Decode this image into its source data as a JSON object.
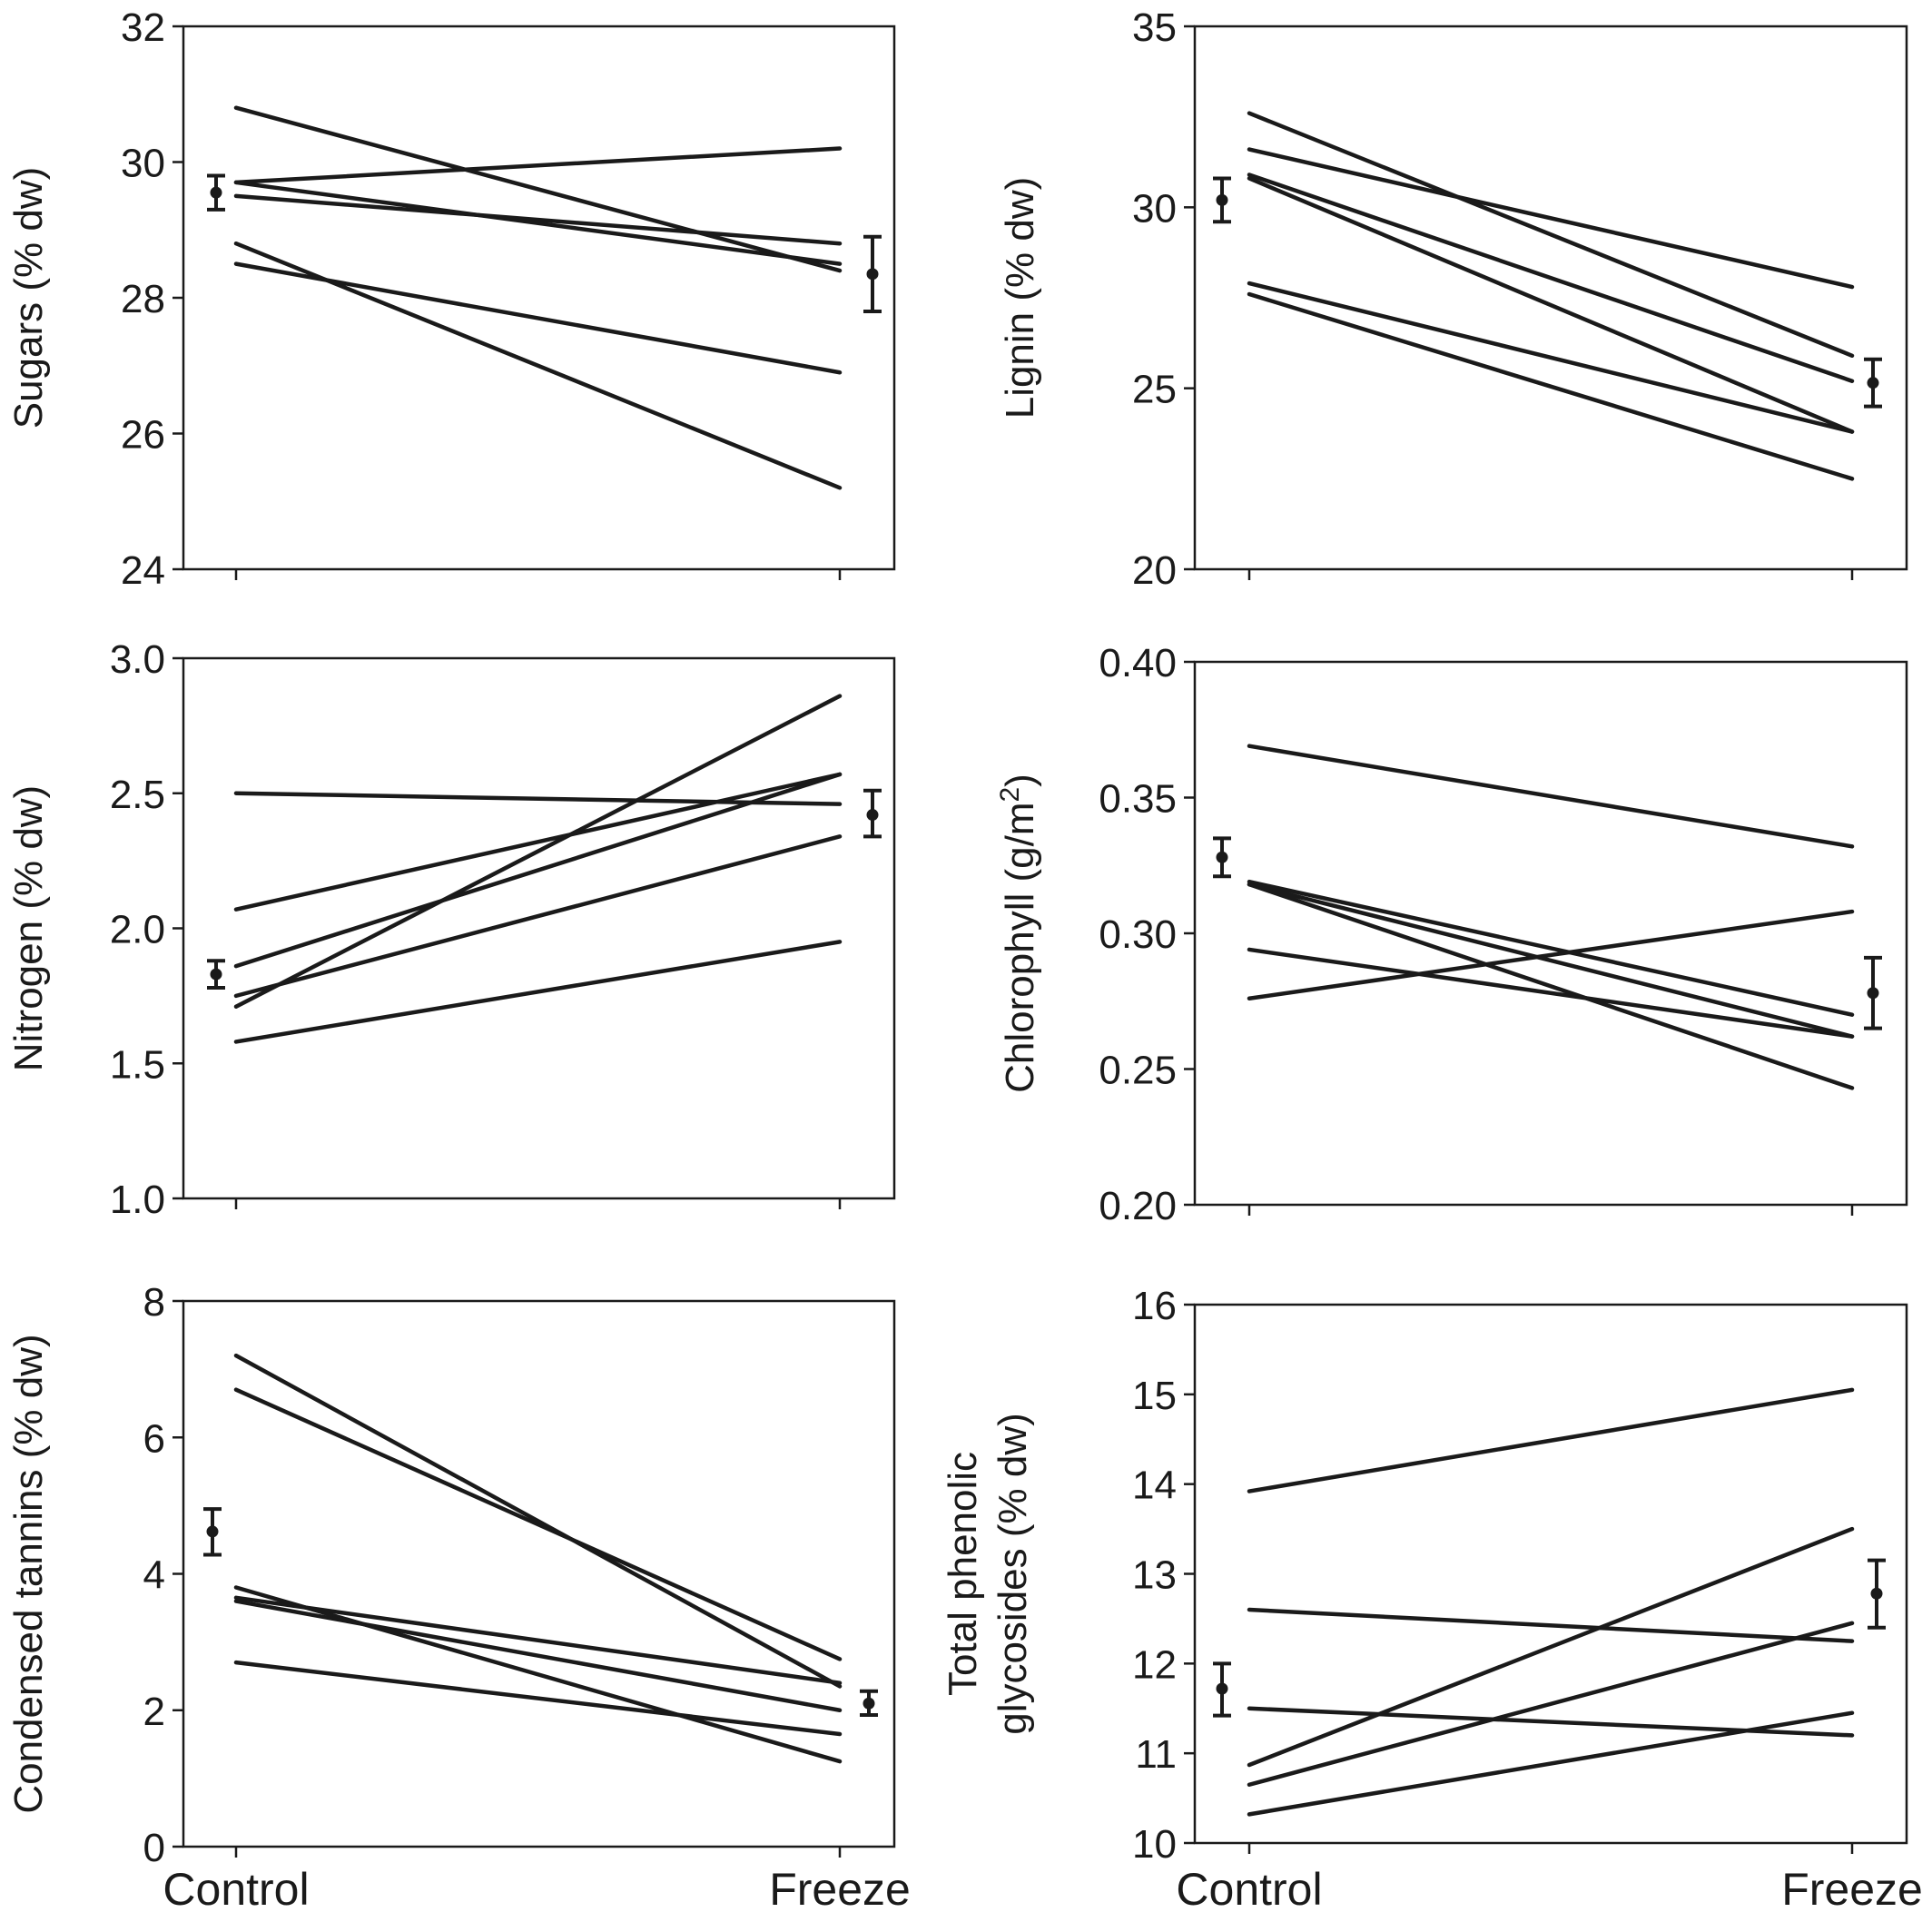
{
  "x_categories": [
    "Control",
    "Freeze"
  ],
  "chart_data": [
    {
      "type": "line",
      "ylabel": "Sugars (% dw)",
      "ylim": [
        24,
        32
      ],
      "yticks": [
        "24",
        "26",
        "28",
        "30",
        "32"
      ],
      "categories": [
        "Control",
        "Freeze"
      ],
      "series": [
        {
          "values": [
            30.8,
            28.4
          ]
        },
        {
          "values": [
            29.7,
            30.2
          ]
        },
        {
          "values": [
            29.7,
            28.5
          ]
        },
        {
          "values": [
            29.5,
            28.8
          ]
        },
        {
          "values": [
            28.8,
            25.2
          ]
        },
        {
          "values": [
            28.5,
            26.9
          ]
        }
      ],
      "means": [
        {
          "mean": 29.55,
          "low": 29.3,
          "high": 29.8
        },
        {
          "mean": 28.35,
          "low": 27.8,
          "high": 28.9
        }
      ]
    },
    {
      "type": "line",
      "ylabel": "Lignin (% dw)",
      "ylim": [
        20,
        35
      ],
      "yticks": [
        "20",
        "25",
        "30",
        "35"
      ],
      "categories": [
        "Control",
        "Freeze"
      ],
      "series": [
        {
          "values": [
            32.6,
            25.9
          ]
        },
        {
          "values": [
            31.6,
            27.8
          ]
        },
        {
          "values": [
            30.9,
            25.2
          ]
        },
        {
          "values": [
            30.8,
            23.8
          ]
        },
        {
          "values": [
            27.9,
            23.8
          ]
        },
        {
          "values": [
            27.6,
            22.5
          ]
        }
      ],
      "means": [
        {
          "mean": 30.2,
          "low": 29.6,
          "high": 30.8
        },
        {
          "mean": 25.15,
          "low": 24.5,
          "high": 25.8
        }
      ]
    },
    {
      "type": "line",
      "ylabel": "Nitrogen (% dw)",
      "ylim": [
        1.0,
        3.0
      ],
      "yticks": [
        "1.0",
        "1.5",
        "2.0",
        "2.5",
        "3.0"
      ],
      "categories": [
        "Control",
        "Freeze"
      ],
      "series": [
        {
          "values": [
            2.5,
            2.46
          ]
        },
        {
          "values": [
            2.07,
            2.57
          ]
        },
        {
          "values": [
            1.86,
            2.57
          ]
        },
        {
          "values": [
            1.75,
            2.34
          ]
        },
        {
          "values": [
            1.71,
            2.86
          ]
        },
        {
          "values": [
            1.58,
            1.95
          ]
        }
      ],
      "means": [
        {
          "mean": 1.83,
          "low": 1.78,
          "high": 1.88
        },
        {
          "mean": 2.42,
          "low": 2.34,
          "high": 2.51
        }
      ]
    },
    {
      "type": "line",
      "ylabel": "Chlorophyll (g/m",
      "ylabel_sup": "2",
      "ylabel_end": ")",
      "ylim": [
        0.2,
        0.4
      ],
      "yticks": [
        "0.20",
        "0.25",
        "0.30",
        "0.35",
        "0.40"
      ],
      "categories": [
        "Control",
        "Freeze"
      ],
      "series": [
        {
          "values": [
            0.369,
            0.332
          ]
        },
        {
          "values": [
            0.319,
            0.27
          ]
        },
        {
          "values": [
            0.318,
            0.262
          ]
        },
        {
          "values": [
            0.318,
            0.243
          ]
        },
        {
          "values": [
            0.294,
            0.262
          ]
        },
        {
          "values": [
            0.276,
            0.308
          ]
        }
      ],
      "means": [
        {
          "mean": 0.328,
          "low": 0.321,
          "high": 0.335
        },
        {
          "mean": 0.278,
          "low": 0.265,
          "high": 0.291
        }
      ]
    },
    {
      "type": "line",
      "ylabel": "Condensed tannins (% dw)",
      "ylim": [
        0,
        8
      ],
      "yticks": [
        "0",
        "2",
        "4",
        "6",
        "8"
      ],
      "categories": [
        "Control",
        "Freeze"
      ],
      "series": [
        {
          "values": [
            7.2,
            2.35
          ]
        },
        {
          "values": [
            6.7,
            2.75
          ]
        },
        {
          "values": [
            3.8,
            1.25
          ]
        },
        {
          "values": [
            3.65,
            2.4
          ]
        },
        {
          "values": [
            3.6,
            2.0
          ]
        },
        {
          "values": [
            2.7,
            1.65
          ]
        }
      ],
      "means": [
        {
          "mean": 4.62,
          "low": 4.28,
          "high": 4.95
        },
        {
          "mean": 2.1,
          "low": 1.93,
          "high": 2.28
        }
      ]
    },
    {
      "type": "line",
      "ylabel": "Total phenolic",
      "ylabel_line2": "glycosides (% dw)",
      "ylim": [
        10,
        16
      ],
      "yticks": [
        "10",
        "11",
        "12",
        "13",
        "14",
        "15",
        "16"
      ],
      "categories": [
        "Control",
        "Freeze"
      ],
      "series": [
        {
          "values": [
            13.92,
            15.05
          ]
        },
        {
          "values": [
            12.6,
            12.25
          ]
        },
        {
          "values": [
            11.5,
            11.2
          ]
        },
        {
          "values": [
            10.87,
            13.5
          ]
        },
        {
          "values": [
            10.65,
            12.45
          ]
        },
        {
          "values": [
            10.32,
            11.45
          ]
        }
      ],
      "means": [
        {
          "mean": 11.72,
          "low": 11.42,
          "high": 12.0
        },
        {
          "mean": 12.78,
          "low": 12.4,
          "high": 13.15
        }
      ]
    }
  ]
}
